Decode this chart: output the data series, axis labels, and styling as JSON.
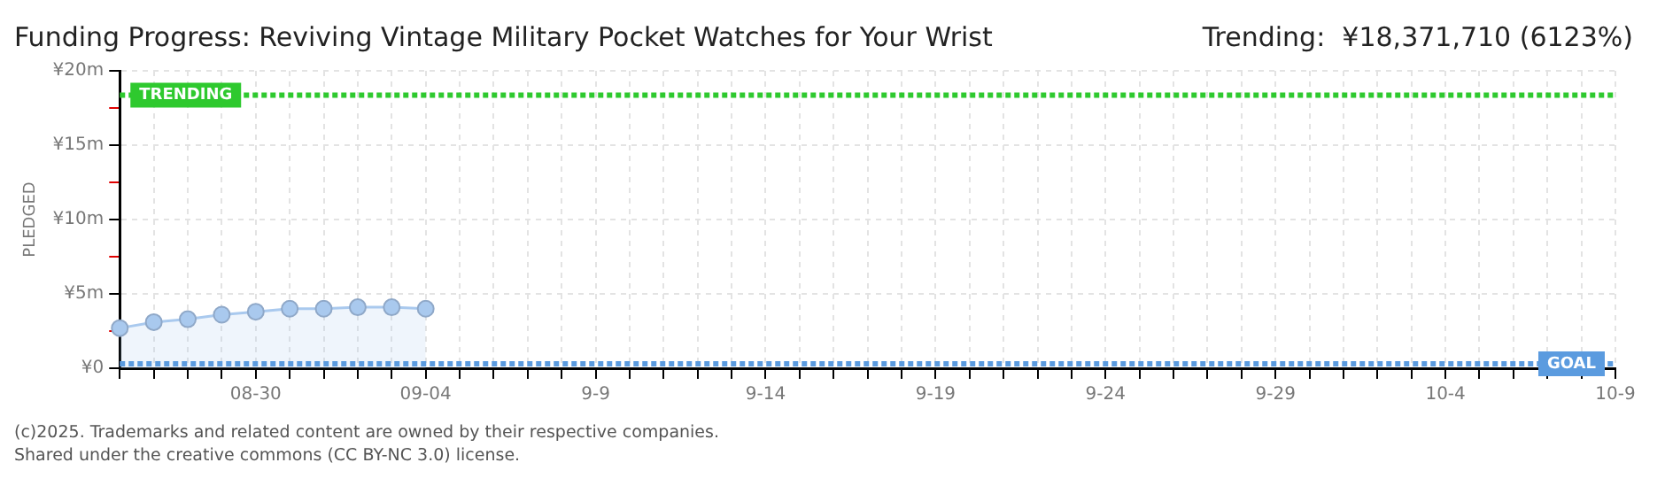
{
  "chart_data": {
    "type": "area",
    "title": "Funding Progress: Reviving Vintage Military Pocket Watches for Your Wrist",
    "subtitle": "Trending:  ¥18,371,710 (6123%)",
    "ylabel": "PLEDGED",
    "annotations": [
      "(c)2025. Trademarks and related content are owned by their respective companies.",
      "Shared under the creative commons (CC BY-NC 3.0) license."
    ],
    "categories": [
      null,
      null,
      null,
      null,
      "08-30",
      null,
      null,
      null,
      null,
      "09-04",
      null,
      null,
      null,
      null,
      "9-9",
      null,
      null,
      null,
      null,
      "9-14",
      null,
      null,
      null,
      null,
      "9-19",
      null,
      null,
      null,
      null,
      "9-24",
      null,
      null,
      null,
      null,
      "9-29",
      null,
      null,
      null,
      null,
      "10-4",
      null,
      null,
      null,
      null,
      "10-9"
    ],
    "series": [
      {
        "color": "#a9c9ee",
        "values": [
          2.7,
          3.1,
          3.3,
          3.6,
          3.8,
          4.0,
          4.0,
          4.1,
          4.1,
          4.0,
          null,
          null,
          null,
          null,
          null,
          null,
          null,
          null,
          null,
          null,
          null,
          null,
          null,
          null,
          null,
          null,
          null,
          null,
          null,
          null,
          null,
          null,
          null,
          null,
          null,
          null,
          null,
          null,
          null,
          null,
          null,
          null,
          null,
          null,
          null
        ]
      }
    ],
    "ylim": [
      0,
      20
    ],
    "yticks": [
      {
        "value": 0,
        "label": "¥0"
      },
      {
        "value": 2.5,
        "label": null
      },
      {
        "value": 5,
        "label": "¥5m"
      },
      {
        "value": 7.5,
        "label": null
      },
      {
        "value": 10,
        "label": "¥10m"
      },
      {
        "value": 12.5,
        "label": null
      },
      {
        "value": 15,
        "label": "¥15m"
      },
      {
        "value": 17.5,
        "label": null
      },
      {
        "value": 20,
        "label": "¥20m"
      }
    ],
    "ref_lines": [
      {
        "axis": "y",
        "value": 18.37,
        "label": "TRENDING",
        "color": "#2ec92e",
        "line_style": "dotted"
      },
      {
        "axis": "y",
        "value": 0.3,
        "label": "GOAL",
        "color": "#5b9bdf",
        "line_style": "dotted"
      }
    ],
    "grid": true,
    "marker": "circle",
    "legend": false
  }
}
